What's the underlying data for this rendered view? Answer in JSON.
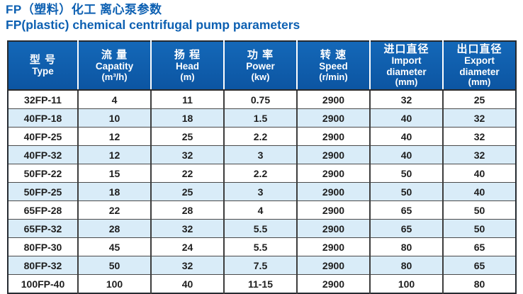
{
  "title": {
    "zh": "FP（塑料）化工 离心泵参数",
    "en": "FP(plastic) chemical centrifugal pump parameters"
  },
  "colors": {
    "title_blue": "#0d60b2",
    "header_blue": "#0f5cab",
    "header_text": "#ffffff",
    "row_alt_blue": "#d9ecf8",
    "row_white": "#ffffff",
    "grid_line": "#4a4a4a",
    "cell_text": "#1e1e1e"
  },
  "table": {
    "columns": [
      {
        "id": "type",
        "zh": "型 号",
        "en": "Type",
        "unit": ""
      },
      {
        "id": "capacity",
        "zh": "流 量",
        "en": "Capatity",
        "unit": "(m³/h)"
      },
      {
        "id": "head",
        "zh": "扬 程",
        "en": "Head",
        "unit": "(m)"
      },
      {
        "id": "power",
        "zh": "功 率",
        "en": "Power",
        "unit": "(kw)"
      },
      {
        "id": "speed",
        "zh": "转 速",
        "en": "Speed",
        "unit": "(r/min)"
      },
      {
        "id": "import-diameter",
        "zh": "进口直径",
        "en": "Import diameter",
        "unit": "(mm)"
      },
      {
        "id": "export-diameter",
        "zh": "出口直径",
        "en": "Export diameter",
        "unit": "(mm)"
      }
    ],
    "rows": [
      [
        "32FP-11",
        "4",
        "11",
        "0.75",
        "2900",
        "32",
        "25"
      ],
      [
        "40FP-18",
        "10",
        "18",
        "1.5",
        "2900",
        "40",
        "32"
      ],
      [
        "40FP-25",
        "12",
        "25",
        "2.2",
        "2900",
        "40",
        "32"
      ],
      [
        "40FP-32",
        "12",
        "32",
        "3",
        "2900",
        "40",
        "32"
      ],
      [
        "50FP-22",
        "15",
        "22",
        "2.2",
        "2900",
        "50",
        "40"
      ],
      [
        "50FP-25",
        "18",
        "25",
        "3",
        "2900",
        "50",
        "40"
      ],
      [
        "65FP-28",
        "22",
        "28",
        "4",
        "2900",
        "65",
        "50"
      ],
      [
        "65FP-32",
        "28",
        "32",
        "5.5",
        "2900",
        "65",
        "50"
      ],
      [
        "80FP-30",
        "45",
        "24",
        "5.5",
        "2900",
        "80",
        "65"
      ],
      [
        "80FP-32",
        "50",
        "32",
        "7.5",
        "2900",
        "80",
        "65"
      ],
      [
        "100FP-40",
        "100",
        "40",
        "11-15",
        "2900",
        "100",
        "80"
      ]
    ]
  }
}
